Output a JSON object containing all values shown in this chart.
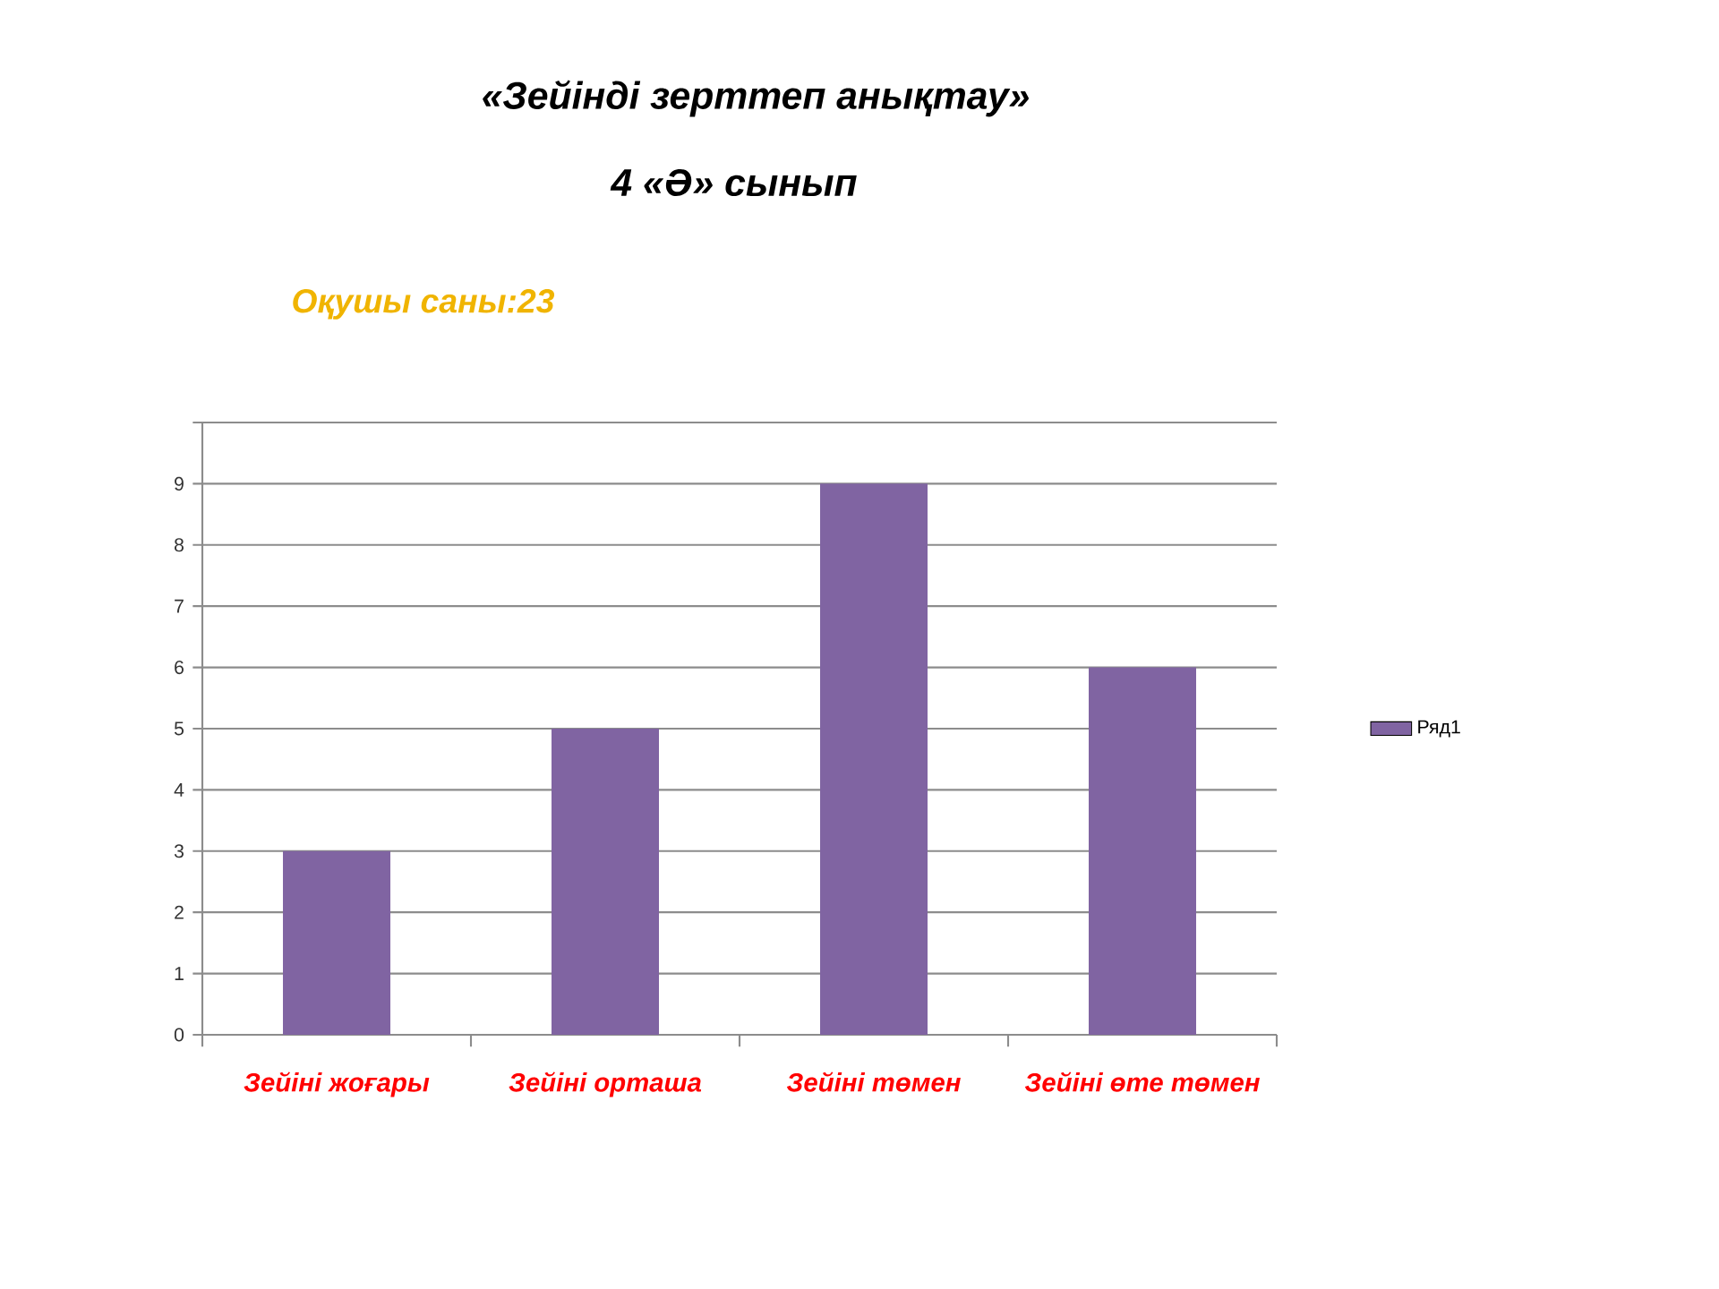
{
  "chart_data": {
    "type": "bar",
    "title": "«Зейінді зерттеп анықтау»",
    "subtitle": "4 «Ә» сынып",
    "annotations": [
      "Оқушы  саны:23"
    ],
    "categories": [
      "Зейіні жоғары",
      "Зейіні орташа",
      "Зейіні төмен",
      "Зейіні өте төмен"
    ],
    "series": [
      {
        "name": "Ряд1",
        "color": "#8064a2",
        "values": [
          3,
          5,
          9,
          6
        ]
      }
    ],
    "ylim": [
      0,
      10
    ],
    "yticks": [
      0,
      1,
      2,
      3,
      4,
      5,
      6,
      7,
      8,
      9,
      {
        "value": 10,
        "label": null
      }
    ],
    "grid": "y",
    "legend": "right"
  }
}
